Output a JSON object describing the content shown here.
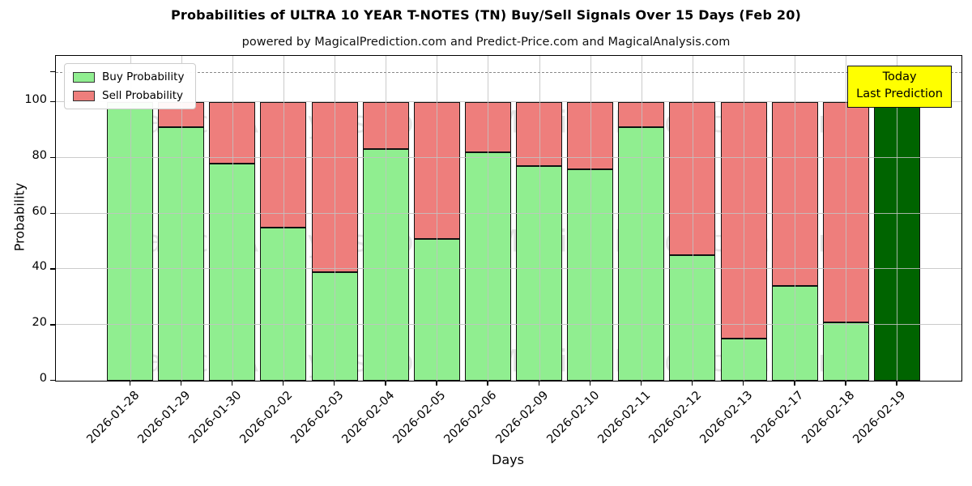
{
  "title": "Probabilities of ULTRA 10 YEAR T-NOTES (TN) Buy/Sell Signals Over 15 Days (Feb 20)",
  "subtitle": "powered by MagicalPrediction.com and Predict-Price.com and MagicalAnalysis.com",
  "legend": {
    "buy_label": "Buy Probability",
    "sell_label": "Sell Probability"
  },
  "annotation": {
    "line1": "Today",
    "line2": "Last Prediction"
  },
  "watermarks": [
    "MagicalAnalysis.com",
    "MagicalPrediction.com"
  ],
  "colors": {
    "buy": "#90ee90",
    "sell": "#ee7e7c",
    "today": "#006400",
    "bar_border": "#111111",
    "grid": "#c2c2c2",
    "dashed_line": "#8a8a8a",
    "annotation_bg": "#ffff00",
    "legend_border": "#cccccc"
  },
  "chart_data": {
    "type": "bar",
    "stacked": true,
    "title": "Probabilities of ULTRA 10 YEAR T-NOTES (TN) Buy/Sell Signals Over 15 Days (Feb 20)",
    "xlabel": "Days",
    "ylabel": "Probability",
    "ylim": [
      0,
      116.5
    ],
    "yticks": [
      0,
      20,
      40,
      60,
      80,
      100
    ],
    "dashed_line_y": 110,
    "grid": true,
    "legend_position": "upper left",
    "categories": [
      "2026-01-28",
      "2026-01-29",
      "2026-01-30",
      "2026-02-02",
      "2026-02-03",
      "2026-02-04",
      "2026-02-05",
      "2026-02-06",
      "2026-02-09",
      "2026-02-10",
      "2026-02-11",
      "2026-02-12",
      "2026-02-13",
      "2026-02-17",
      "2026-02-18",
      "2026-02-19"
    ],
    "series": [
      {
        "name": "Buy Probability",
        "color": "#90ee90",
        "values": [
          100,
          91,
          78,
          55,
          39,
          83,
          51,
          82,
          77,
          76,
          91,
          45,
          15,
          34,
          21,
          100
        ]
      },
      {
        "name": "Sell Probability",
        "color": "#ee7e7c",
        "values": [
          0,
          9,
          22,
          45,
          61,
          17,
          49,
          18,
          23,
          24,
          9,
          55,
          85,
          66,
          79,
          0
        ]
      }
    ],
    "today_index": 15,
    "today_annotation": "Today Last Prediction"
  }
}
